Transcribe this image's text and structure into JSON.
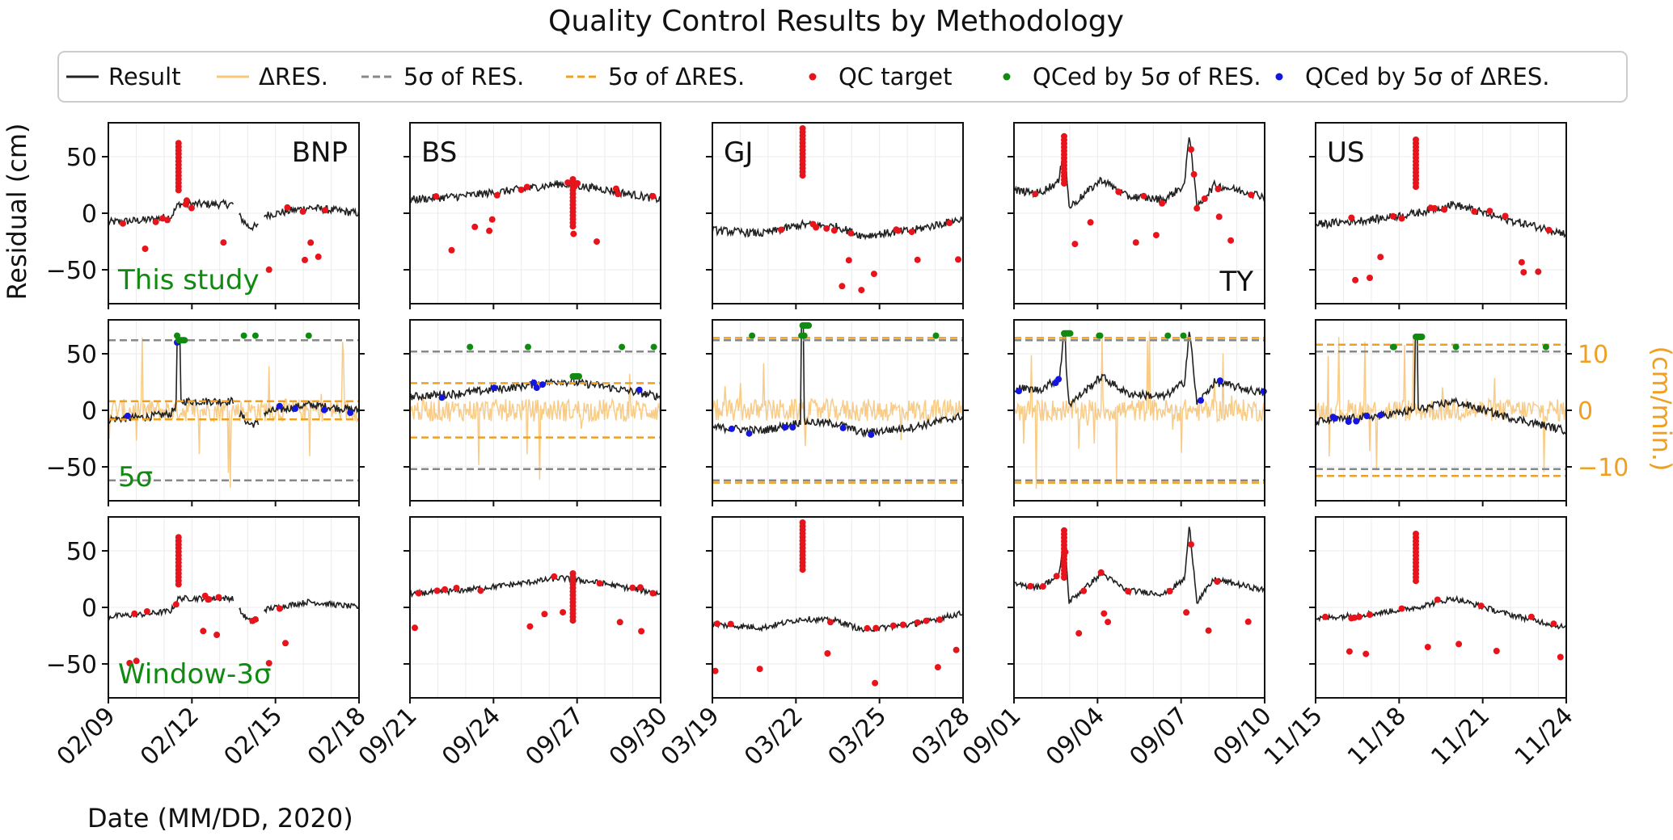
{
  "chart_data": {
    "type": "line",
    "title": "Quality Control Results by Methodology",
    "xlabel": "Date (MM/DD, 2020)",
    "ylabel": "Residual (cm)",
    "ylabel_right": "(cm/min.)",
    "ylim": [
      -80,
      80
    ],
    "y_ticks": [
      -50,
      0,
      50
    ],
    "ylim_right": [
      -16,
      16
    ],
    "y_ticks_right": [
      -10,
      0,
      10
    ],
    "grid": true,
    "legend_position": "top-center",
    "legend": [
      {
        "key": "result",
        "label": "Result",
        "style": "line",
        "color": "#222222"
      },
      {
        "key": "dres",
        "label": "ΔRES.",
        "style": "line",
        "color": "#f7c77a"
      },
      {
        "key": "sig_res",
        "label": "5σ of RES.",
        "style": "dashed",
        "color": "#888888"
      },
      {
        "key": "sig_dres",
        "label": "5σ of ΔRES.",
        "style": "dashed",
        "color": "#f0a020"
      },
      {
        "key": "qc_target",
        "label": "QC target",
        "style": "dot",
        "color": "#e8141c"
      },
      {
        "key": "qc_res",
        "label": "QCed by 5σ of RES.",
        "style": "dot",
        "color": "#118a11"
      },
      {
        "key": "qc_dres",
        "label": "QCed by 5σ of ΔRES.",
        "style": "dot",
        "color": "#1515e0"
      }
    ],
    "rows": [
      {
        "key": "this_study",
        "label": "This study"
      },
      {
        "key": "five_sigma",
        "label": "5σ"
      },
      {
        "key": "window",
        "label": "Window-3σ"
      }
    ],
    "stations": [
      {
        "name": "BNP",
        "label_pos": "top-right",
        "x_ticks": [
          "02/09",
          "02/12",
          "02/15",
          "02/18"
        ],
        "base": [
          [
            0,
            -8
          ],
          [
            0.15,
            -6
          ],
          [
            0.25,
            -3
          ],
          [
            0.28,
            8
          ],
          [
            0.5,
            null
          ],
          [
            0.52,
            -2
          ],
          [
            0.56,
            -12
          ],
          [
            0.6,
            null
          ],
          [
            0.62,
            -2
          ],
          [
            0.8,
            5
          ],
          [
            1,
            0
          ]
        ],
        "spike_t": 0.28,
        "spike_top": 62,
        "sigma_res": 62,
        "sigma_dres": 8
      },
      {
        "name": "BS",
        "label_pos": "top-left",
        "x_ticks": [
          "09/21",
          "09/24",
          "09/27",
          "09/30"
        ],
        "base": [
          [
            0,
            12
          ],
          [
            0.2,
            15
          ],
          [
            0.4,
            20
          ],
          [
            0.6,
            26
          ],
          [
            0.75,
            22
          ],
          [
            1,
            12
          ]
        ],
        "spike_t": 0.65,
        "spike_top": 30,
        "sigma_res": 52,
        "sigma_dres": 24
      },
      {
        "name": "GJ",
        "label_pos": "top-left",
        "x_ticks": [
          "03/19",
          "03/22",
          "03/25",
          "03/28"
        ],
        "base": [
          [
            0,
            -15
          ],
          [
            0.2,
            -18
          ],
          [
            0.36,
            -10
          ],
          [
            0.5,
            -12
          ],
          [
            0.6,
            -20
          ],
          [
            0.8,
            -15
          ],
          [
            1,
            -5
          ]
        ],
        "spike_t": 0.36,
        "spike_top": 75,
        "sigma_res": 62,
        "sigma_dres": 64
      },
      {
        "name": "TY",
        "label_pos": "bottom-right",
        "x_ticks": [
          "09/01",
          "09/04",
          "09/07",
          "09/10"
        ],
        "base": [
          [
            0,
            20
          ],
          [
            0.1,
            18
          ],
          [
            0.18,
            28
          ],
          [
            0.2,
            65
          ],
          [
            0.22,
            5
          ],
          [
            0.35,
            30
          ],
          [
            0.45,
            15
          ],
          [
            0.6,
            12
          ],
          [
            0.68,
            25
          ],
          [
            0.7,
            72
          ],
          [
            0.73,
            5
          ],
          [
            0.8,
            25
          ],
          [
            1,
            15
          ]
        ],
        "spike_t": 0.2,
        "spike_top": 68,
        "sigma_res": 62,
        "sigma_dres": 64
      },
      {
        "name": "US",
        "label_pos": "top-left",
        "x_ticks": [
          "11/15",
          "11/18",
          "11/21",
          "11/24"
        ],
        "base": [
          [
            0,
            -10
          ],
          [
            0.25,
            -5
          ],
          [
            0.4,
            0
          ],
          [
            0.55,
            8
          ],
          [
            0.75,
            -5
          ],
          [
            1,
            -18
          ]
        ],
        "spike_t": 0.4,
        "spike_top": 65,
        "sigma_res": 52,
        "sigma_dres": 58
      }
    ]
  }
}
